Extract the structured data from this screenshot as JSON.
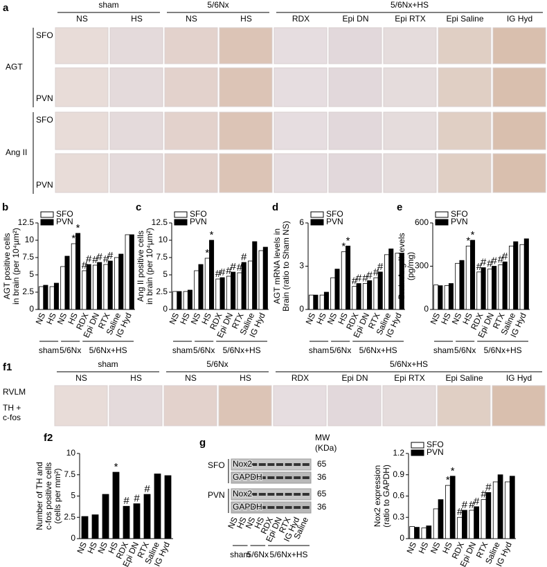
{
  "panel_a": {
    "letter": "a",
    "groups": [
      "sham",
      "5/6Nx",
      "5/6Nx+HS"
    ],
    "columns": [
      "NS",
      "HS",
      "NS",
      "HS",
      "RDX",
      "Epi DN",
      "Epi RTX",
      "Epi Saline",
      "IG Hyd"
    ],
    "rows": [
      {
        "stain": "AGT",
        "regions": [
          "SFO",
          "PVN"
        ]
      },
      {
        "stain": "Ang II",
        "regions": [
          "SFO",
          "PVN"
        ]
      }
    ]
  },
  "panel_f1": {
    "letter": "f1",
    "groups": [
      "sham",
      "5/6Nx",
      "5/6Nx+HS"
    ],
    "columns": [
      "NS",
      "HS",
      "NS",
      "HS",
      "RDX",
      "Epi DN",
      "Epi RTX",
      "Epi Saline",
      "IG Hyd"
    ],
    "region": "RVLM",
    "stain": [
      "TH +",
      "c-fos"
    ]
  },
  "blot": {
    "letter": "g",
    "mw": [
      "MW",
      "(KDa)"
    ],
    "blocks": [
      {
        "region": "SFO",
        "bands": [
          {
            "name": "Nox2",
            "mw": "65"
          },
          {
            "name": "GAPDH",
            "mw": "36"
          }
        ]
      },
      {
        "region": "PVN",
        "bands": [
          {
            "name": "Nox2",
            "mw": "65"
          },
          {
            "name": "GAPDH",
            "mw": "36"
          }
        ]
      }
    ],
    "categories": [
      "NS",
      "HS",
      "NS",
      "HS",
      "RDX",
      "Epi DN",
      "RTX",
      "IG Hyd",
      "Saline"
    ],
    "groups": [
      "sham",
      "5/6Nx",
      "5/6Nx+HS"
    ]
  },
  "chart_data": [
    {
      "type": "bar",
      "panel": "b",
      "ylabel": [
        "AGT positive cells",
        "in brain (per 10⁴µm²)"
      ],
      "categories": [
        "NS",
        "HS",
        "NS",
        "HS",
        "RDX",
        "Epi DN",
        "RTX",
        "Saline",
        "IG Hyd"
      ],
      "groups": [
        "sham",
        "5/6Nx",
        "5/6Nx+HS"
      ],
      "ylim": [
        0,
        12.5
      ],
      "yticks": [
        0,
        2.5,
        5,
        7.5,
        10,
        12.5
      ],
      "series": [
        {
          "name": "SFO",
          "color": "#ffffff",
          "values": [
            3.3,
            3.3,
            6.2,
            9.5,
            5.6,
            6.4,
            6.5,
            7.5,
            10.8
          ],
          "markers": [
            null,
            null,
            null,
            "*",
            "#",
            "#",
            "#",
            null,
            null
          ]
        },
        {
          "name": "PVN",
          "color": "#000000",
          "values": [
            3.5,
            3.8,
            7.7,
            11.0,
            6.5,
            6.8,
            7.0,
            8.0,
            10.8
          ],
          "markers": [
            null,
            null,
            null,
            "*",
            "#",
            "#",
            "#",
            null,
            null
          ]
        }
      ]
    },
    {
      "type": "bar",
      "panel": "c",
      "ylabel": [
        "Ang II positive cells",
        "in brain (per 10⁴µm²)"
      ],
      "categories": [
        "NS",
        "HS",
        "NS",
        "HS",
        "RDX",
        "Epi DN",
        "RTX",
        "Saline",
        "IG Hyd"
      ],
      "groups": [
        "sham",
        "5/6Nx",
        "5/6Nx+HS"
      ],
      "ylim": [
        0,
        12.5
      ],
      "yticks": [
        0,
        2.5,
        5,
        7.5,
        10,
        12.5
      ],
      "series": [
        {
          "name": "SFO",
          "color": "#ffffff",
          "values": [
            2.6,
            2.6,
            5.6,
            7.4,
            4.4,
            4.8,
            5.3,
            7.0,
            8.5
          ],
          "markers": [
            null,
            null,
            null,
            "*",
            "#",
            "#",
            "#",
            null,
            null
          ]
        },
        {
          "name": "PVN",
          "color": "#000000",
          "values": [
            2.6,
            2.8,
            6.5,
            10.0,
            4.6,
            5.4,
            6.8,
            9.8,
            9.0
          ],
          "markers": [
            null,
            null,
            null,
            "*",
            "#",
            "#",
            "#",
            null,
            null
          ]
        }
      ]
    },
    {
      "type": "bar",
      "panel": "d",
      "ylabel": [
        "AGT mRNA levels in",
        "Brain (ratio to Sham NS)"
      ],
      "categories": [
        "NS",
        "HS",
        "NS",
        "HS",
        "RDX",
        "Epi DN",
        "RTX",
        "Saline",
        "IG Hyd"
      ],
      "groups": [
        "sham",
        "5/6Nx",
        "5/6Nx+HS"
      ],
      "ylim": [
        0,
        6
      ],
      "yticks": [
        0,
        3,
        6
      ],
      "series": [
        {
          "name": "SFO",
          "color": "#ffffff",
          "values": [
            1.0,
            1.0,
            2.2,
            4.0,
            1.6,
            1.8,
            2.2,
            3.8,
            3.9
          ],
          "markers": [
            null,
            null,
            null,
            "*",
            "#",
            "#",
            "#",
            null,
            null
          ]
        },
        {
          "name": "PVN",
          "color": "#000000",
          "values": [
            1.0,
            1.2,
            2.8,
            4.4,
            1.8,
            2.0,
            2.6,
            4.2,
            3.9
          ],
          "markers": [
            null,
            null,
            null,
            "*",
            "#",
            "#",
            "#",
            null,
            null
          ]
        }
      ]
    },
    {
      "type": "bar",
      "panel": "e",
      "ylabel": [
        "Brain Ang II levels",
        "(pg/mg)"
      ],
      "categories": [
        "NS",
        "HS",
        "NS",
        "HS",
        "RDX",
        "Epi DN",
        "RTX",
        "Saline",
        "IG Hyd"
      ],
      "groups": [
        "sham",
        "5/6Nx",
        "5/6Nx+HS"
      ],
      "ylim": [
        0,
        600
      ],
      "yticks": [
        0,
        300,
        600
      ],
      "series": [
        {
          "name": "SFO",
          "color": "#ffffff",
          "values": [
            170,
            165,
            320,
            440,
            260,
            280,
            310,
            440,
            450
          ],
          "markers": [
            null,
            null,
            null,
            "*",
            "#",
            "#",
            "#",
            null,
            null
          ]
        },
        {
          "name": "PVN",
          "color": "#000000",
          "values": [
            165,
            180,
            340,
            480,
            290,
            300,
            330,
            470,
            490
          ],
          "markers": [
            null,
            null,
            null,
            "*",
            "#",
            "#",
            "#",
            null,
            null
          ]
        }
      ]
    },
    {
      "type": "bar",
      "panel": "f2",
      "ylabel": [
        "Number of TH and",
        "c-fos positive cells",
        "(cells per mm²)"
      ],
      "categories": [
        "NS",
        "HS",
        "NS",
        "HS",
        "RDX",
        "Epi DN",
        "RTX",
        "Saline",
        "IG Hyd"
      ],
      "groups": [
        "sham",
        "5/6Nx",
        "5/6Nx+HS"
      ],
      "ylim": [
        0,
        10
      ],
      "yticks": [
        0,
        2.5,
        5,
        7.5,
        10
      ],
      "series": [
        {
          "color": "#000000",
          "values": [
            2.6,
            2.8,
            5.2,
            7.8,
            3.8,
            4.1,
            5.2,
            7.6,
            7.4
          ],
          "markers": [
            null,
            null,
            null,
            "*",
            "#",
            "#",
            "#",
            null,
            null
          ]
        }
      ]
    },
    {
      "type": "bar",
      "ylabel": [
        "Nox2 expression",
        "(ratio to GAPDH)"
      ],
      "categories": [
        "NS",
        "HS",
        "NS",
        "HS",
        "RDX",
        "Epi DN",
        "RTX",
        "Saline",
        "IG Hyd"
      ],
      "groups": [
        "sham",
        "5/6Nx",
        "5/6Nx+HS"
      ],
      "ylim": [
        0,
        1.2
      ],
      "yticks": [
        0,
        0.3,
        0.6,
        0.9,
        1.2
      ],
      "series": [
        {
          "name": "SFO",
          "color": "#ffffff",
          "values": [
            0.17,
            0.15,
            0.42,
            0.75,
            0.3,
            0.4,
            0.55,
            0.8,
            0.8
          ],
          "markers": [
            null,
            null,
            null,
            "*",
            "#",
            "#",
            "#",
            null,
            null
          ]
        },
        {
          "name": "PVN",
          "color": "#000000",
          "values": [
            0.16,
            0.18,
            0.55,
            0.88,
            0.4,
            0.45,
            0.65,
            0.9,
            0.88
          ],
          "markers": [
            null,
            null,
            null,
            "*",
            "#",
            "#",
            "#",
            null,
            null
          ]
        }
      ]
    }
  ]
}
